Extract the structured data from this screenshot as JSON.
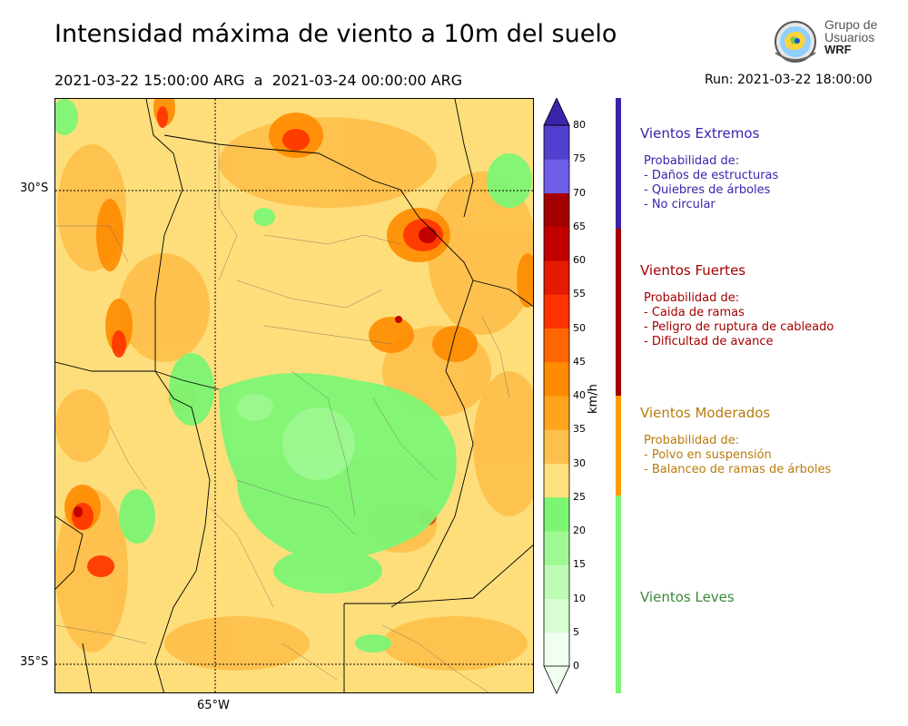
{
  "header": {
    "title": "Intensidad máxima de viento a 10m del suelo",
    "period": "2021-03-22 15:00:00 ARG  a  2021-03-24 00:00:00 ARG",
    "run": "Run: 2021-03-22 18:00:00"
  },
  "logo": {
    "line1": "Grupo de",
    "line2": "Usuarios",
    "line3": "WRF",
    "icon": "globe-icon"
  },
  "map": {
    "lat_labels": [
      "30°S",
      "35°S"
    ],
    "lon_labels": [
      "65°W"
    ]
  },
  "colorbar": {
    "unit": "km/h",
    "ticks": [
      "0",
      "5",
      "10",
      "15",
      "20",
      "25",
      "30",
      "35",
      "40",
      "45",
      "50",
      "55",
      "60",
      "65",
      "70",
      "75",
      "80"
    ],
    "colors": [
      "#f0fff0",
      "#d9fdd3",
      "#befbb4",
      "#9ff893",
      "#7df574",
      "#fee07d",
      "#fec04c",
      "#fea51d",
      "#ff8b00",
      "#ff6600",
      "#ff3300",
      "#e51a00",
      "#c20000",
      "#a40000",
      "#6f5ee8",
      "#5040cd",
      "#3a24ac"
    ]
  },
  "categories": [
    {
      "name": "Vientos Extremos",
      "color": "#3a24ac",
      "lines": [
        "Probabilidad de:",
        "- Daños de estructuras",
        "- Quiebres de árboles",
        "- No circular"
      ]
    },
    {
      "name": "Vientos Fuertes",
      "color": "#a30000",
      "lines": [
        "Probabilidad de:",
        "- Caida de ramas",
        "- Peligro de ruptura de cableado",
        "- Dificultad de avance"
      ]
    },
    {
      "name": "Vientos Moderados",
      "color": "#b87b0c",
      "lines": [
        "Probabilidad de:",
        "- Polvo en suspensión",
        "- Balanceo de ramas de árboles"
      ]
    },
    {
      "name": "Vientos Leves",
      "color": "#3a8a3a",
      "lines": []
    }
  ]
}
